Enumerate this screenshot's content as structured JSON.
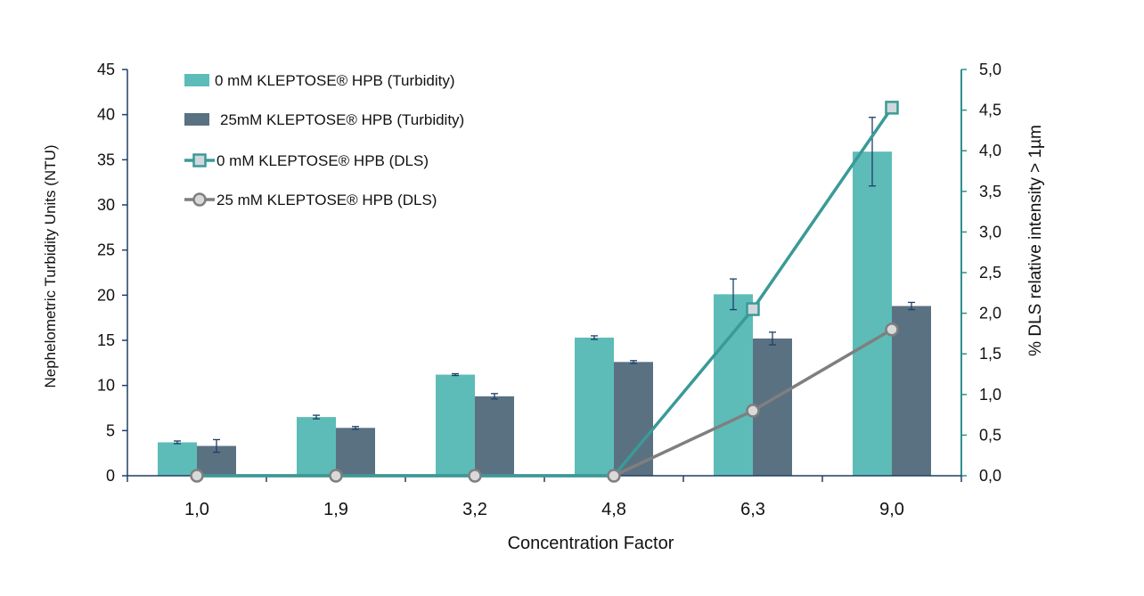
{
  "chart_data": {
    "type": "bar",
    "title": "",
    "xlabel": "Concentration Factor",
    "ylabel": "Nephelometric Turbidity Units  (NTU)",
    "y2label": "% DLS relative intensity  > 1µm",
    "categories": [
      "1,0",
      "1,9",
      "3,2",
      "4,8",
      "6,3",
      "9,0"
    ],
    "ylim": [
      0,
      45
    ],
    "y2lim": [
      0,
      5
    ],
    "yticks": [
      "0",
      "5",
      "10",
      "15",
      "20",
      "25",
      "30",
      "35",
      "40",
      "45"
    ],
    "y2ticks": [
      "0,0",
      "0,5",
      "1,0",
      "1,5",
      "2,0",
      "2,5",
      "3,0",
      "3,5",
      "4,0",
      "4,5",
      "5,0"
    ],
    "legend_position": "top-left",
    "grid": false,
    "bar_series": [
      {
        "name": "0 mM KLEPTOSE® HPB (Turbidity)",
        "color": "#5dbcb8",
        "values": [
          3.7,
          6.5,
          11.2,
          15.3,
          20.1,
          35.9
        ],
        "errors": [
          0.15,
          0.2,
          0.1,
          0.2,
          1.7,
          3.8
        ]
      },
      {
        "name": "25mM KLEPTOSE® HPB (Turbidity)",
        "color": "#5a7182",
        "values": [
          3.3,
          5.3,
          8.8,
          12.6,
          15.2,
          18.8
        ],
        "errors": [
          0.7,
          0.15,
          0.3,
          0.15,
          0.7,
          0.4
        ]
      }
    ],
    "line_series": [
      {
        "name": "0 mM KLEPTOSE® HPB (DLS)",
        "color": "#3a9a97",
        "marker": "square",
        "marker_fill": "#cfd8dc",
        "axis": "right",
        "values": [
          0,
          0,
          0,
          0,
          2.05,
          4.53
        ]
      },
      {
        "name": "25 mM KLEPTOSE® HPB (DLS)",
        "color": "#7f7f7f",
        "marker": "circle",
        "marker_fill": "#d9d9d9",
        "axis": "right",
        "values": [
          0,
          0,
          0,
          0,
          0.8,
          1.8
        ]
      }
    ]
  }
}
